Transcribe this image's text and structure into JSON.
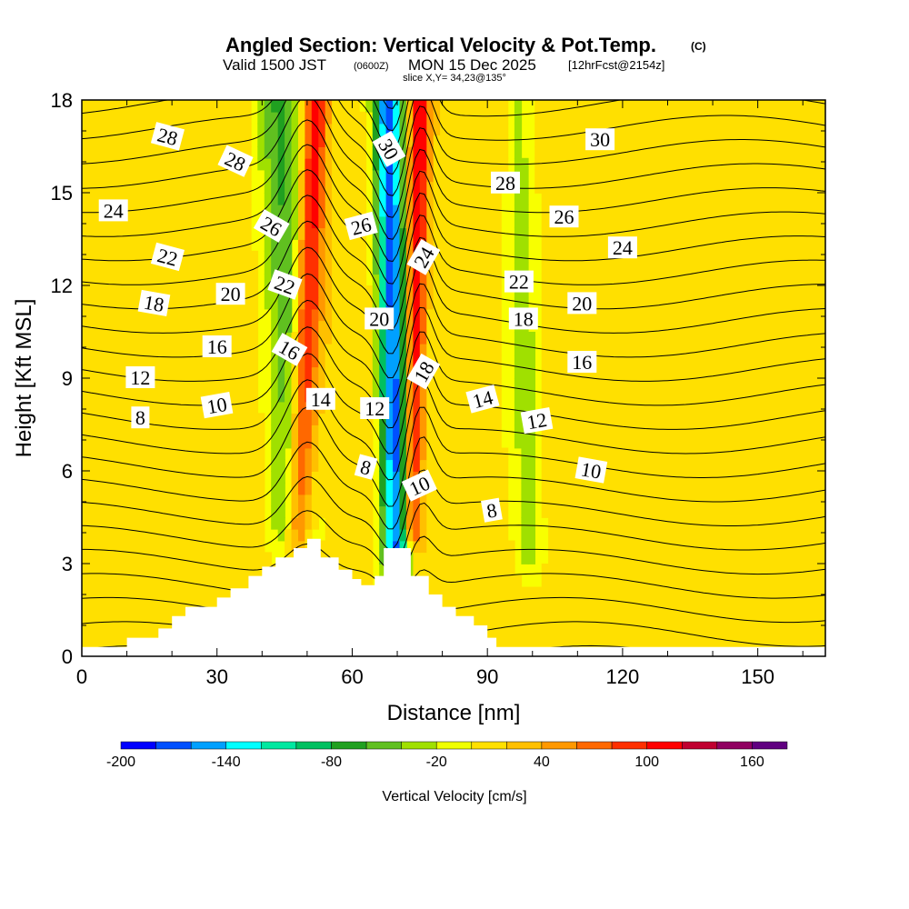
{
  "title": {
    "main": "Angled Section: Vertical Velocity & Pot.Temp.",
    "copyright": "(C)",
    "valid_prefix": "Valid 1500 JST",
    "valid_utc": "(0600Z)",
    "valid_date": "MON 15 Dec 2025",
    "fcst": "[12hrFcst@2154z]",
    "slice": "slice X,Y= 34,23@135°"
  },
  "chart_data": {
    "type": "contour",
    "xlabel": "Distance [nm]",
    "ylabel": "Height [Kft MSL]",
    "xlim": [
      0,
      165
    ],
    "ylim": [
      0,
      18
    ],
    "xticks": [
      0,
      30,
      60,
      90,
      120,
      150
    ],
    "yticks": [
      0,
      3,
      6,
      9,
      12,
      15,
      18
    ],
    "colorbar": {
      "label": "Vertical Velocity [cm/s]",
      "levels": [
        -200,
        -180,
        -160,
        -140,
        -120,
        -100,
        -80,
        -60,
        -40,
        -20,
        0,
        20,
        40,
        60,
        80,
        100,
        120,
        140,
        160,
        180
      ],
      "tick_labels": [
        "-200",
        "-140",
        "-80",
        "-20",
        "40",
        "100",
        "160"
      ],
      "colors": [
        "#0000ff",
        "#0050ff",
        "#00a0ff",
        "#00ffff",
        "#00e8a0",
        "#00c060",
        "#20a020",
        "#60c020",
        "#a0e000",
        "#f0ff00",
        "#ffe000",
        "#ffc000",
        "#ff9800",
        "#ff6800",
        "#ff3000",
        "#ff0000",
        "#c00030",
        "#900060",
        "#600080"
      ]
    },
    "terrain_profile": [
      [
        0,
        0.3
      ],
      [
        10,
        0.3
      ],
      [
        10,
        0.6
      ],
      [
        17,
        0.6
      ],
      [
        17,
        0.9
      ],
      [
        20,
        0.9
      ],
      [
        20,
        1.3
      ],
      [
        23,
        1.3
      ],
      [
        23,
        1.6
      ],
      [
        30,
        1.6
      ],
      [
        30,
        1.9
      ],
      [
        33,
        1.9
      ],
      [
        33,
        2.2
      ],
      [
        37,
        2.2
      ],
      [
        37,
        2.6
      ],
      [
        40,
        2.6
      ],
      [
        40,
        2.9
      ],
      [
        43,
        2.9
      ],
      [
        43,
        3.2
      ],
      [
        47,
        3.2
      ],
      [
        47,
        3.5
      ],
      [
        50,
        3.5
      ],
      [
        50,
        3.8
      ],
      [
        53,
        3.8
      ],
      [
        53,
        3.2
      ],
      [
        57,
        3.2
      ],
      [
        57,
        2.8
      ],
      [
        60,
        2.8
      ],
      [
        60,
        2.5
      ],
      [
        62,
        2.5
      ],
      [
        62,
        2.3
      ],
      [
        65,
        2.3
      ],
      [
        65,
        2.6
      ],
      [
        67,
        2.6
      ],
      [
        67,
        3.5
      ],
      [
        73,
        3.5
      ],
      [
        73,
        2.6
      ],
      [
        77,
        2.6
      ],
      [
        77,
        2.0
      ],
      [
        80,
        2.0
      ],
      [
        80,
        1.6
      ],
      [
        83,
        1.6
      ],
      [
        83,
        1.3
      ],
      [
        87,
        1.3
      ],
      [
        87,
        1.0
      ],
      [
        90,
        1.0
      ],
      [
        90,
        0.6
      ],
      [
        92,
        0.6
      ],
      [
        92,
        0.3
      ],
      [
        165,
        0.3
      ]
    ],
    "updrafts": [
      {
        "x_top": 52,
        "x_bottom": 48,
        "sigma": 2.0,
        "amplitude": 110,
        "y_min": 4
      },
      {
        "x_top": 75,
        "x_bottom": 73,
        "sigma": 1.6,
        "amplitude": 110,
        "y_min": 4
      }
    ],
    "downdrafts": [
      {
        "x_top": 68,
        "x_bottom": 70,
        "sigma": 2.2,
        "amplitude": -180,
        "y_min": 3
      },
      {
        "x_top": 44,
        "x_bottom": 47,
        "sigma": 3.5,
        "amplitude": -70,
        "y_min": 4
      },
      {
        "x_top": 97,
        "x_bottom": 99,
        "sigma": 2.5,
        "amplitude": -35,
        "y_min": 3
      }
    ],
    "isentrope_levels": [
      8,
      10,
      12,
      14,
      16,
      18,
      20,
      22,
      24,
      26,
      28,
      30
    ],
    "contour_labels": [
      {
        "text": "28",
        "x": 19,
        "y": 16.8,
        "angle": 15
      },
      {
        "text": "28",
        "x": 34,
        "y": 16.0,
        "angle": 25
      },
      {
        "text": "24",
        "x": 7,
        "y": 14.4,
        "angle": 0
      },
      {
        "text": "26",
        "x": 42,
        "y": 13.9,
        "angle": 30
      },
      {
        "text": "26",
        "x": 62,
        "y": 13.9,
        "angle": -15
      },
      {
        "text": "30",
        "x": 68,
        "y": 16.4,
        "angle": 60
      },
      {
        "text": "30",
        "x": 115,
        "y": 16.7,
        "angle": 0
      },
      {
        "text": "28",
        "x": 94,
        "y": 15.3,
        "angle": 0
      },
      {
        "text": "26",
        "x": 107,
        "y": 14.2,
        "angle": 0
      },
      {
        "text": "24",
        "x": 76,
        "y": 12.9,
        "angle": -60
      },
      {
        "text": "24",
        "x": 120,
        "y": 13.2,
        "angle": 0
      },
      {
        "text": "22",
        "x": 19,
        "y": 12.9,
        "angle": 15
      },
      {
        "text": "22",
        "x": 45,
        "y": 12.0,
        "angle": 20
      },
      {
        "text": "22",
        "x": 97,
        "y": 12.1,
        "angle": 0
      },
      {
        "text": "20",
        "x": 33,
        "y": 11.7,
        "angle": 0
      },
      {
        "text": "20",
        "x": 66,
        "y": 10.9,
        "angle": 0
      },
      {
        "text": "20",
        "x": 111,
        "y": 11.4,
        "angle": 0
      },
      {
        "text": "18",
        "x": 16,
        "y": 11.4,
        "angle": 10
      },
      {
        "text": "18",
        "x": 98,
        "y": 10.9,
        "angle": 0
      },
      {
        "text": "18",
        "x": 76,
        "y": 9.2,
        "angle": -60
      },
      {
        "text": "16",
        "x": 30,
        "y": 10.0,
        "angle": 0
      },
      {
        "text": "16",
        "x": 46,
        "y": 9.9,
        "angle": 30
      },
      {
        "text": "16",
        "x": 111,
        "y": 9.5,
        "angle": 0
      },
      {
        "text": "14",
        "x": 53,
        "y": 8.3,
        "angle": 0
      },
      {
        "text": "14",
        "x": 89,
        "y": 8.3,
        "angle": -15
      },
      {
        "text": "12",
        "x": 13,
        "y": 9.0,
        "angle": 0
      },
      {
        "text": "12",
        "x": 65,
        "y": 8.0,
        "angle": 0
      },
      {
        "text": "12",
        "x": 101,
        "y": 7.6,
        "angle": -10
      },
      {
        "text": "10",
        "x": 30,
        "y": 8.1,
        "angle": -10
      },
      {
        "text": "10",
        "x": 75,
        "y": 5.5,
        "angle": -25
      },
      {
        "text": "10",
        "x": 113,
        "y": 6.0,
        "angle": 10
      },
      {
        "text": "8",
        "x": 13,
        "y": 7.7,
        "angle": 0
      },
      {
        "text": "8",
        "x": 63,
        "y": 6.1,
        "angle": 15
      },
      {
        "text": "8",
        "x": 91,
        "y": 4.7,
        "angle": -10
      }
    ]
  }
}
